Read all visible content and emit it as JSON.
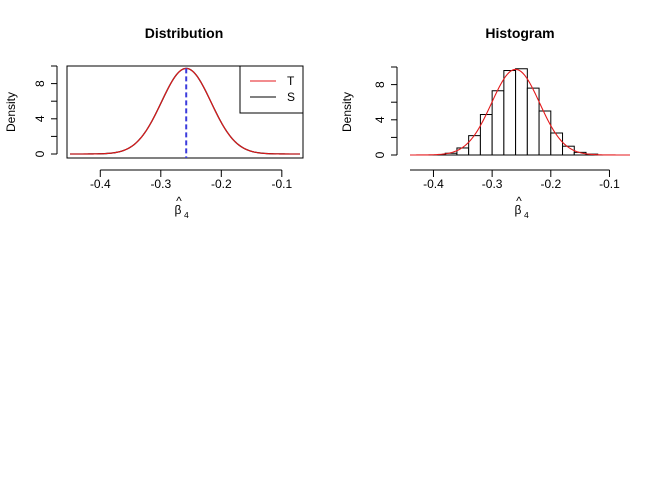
{
  "chart_data": [
    {
      "type": "line",
      "title": "Distribution",
      "xlabel_symbol": "β",
      "xlabel_hat": "^",
      "xlabel_subscript": "4",
      "ylabel": "Density",
      "xlim": [
        -0.455,
        -0.065
      ],
      "ylim": [
        0,
        10
      ],
      "xticks": [
        "-0.4",
        "-0.3",
        "-0.2",
        "-0.1"
      ],
      "xtick_values": [
        -0.4,
        -0.3,
        -0.2,
        -0.1
      ],
      "yticks": [
        "0",
        "4",
        "8"
      ],
      "ytick_values": [
        0,
        4,
        8
      ],
      "y_minor_ticks": [
        2,
        6,
        10
      ],
      "mean": -0.258,
      "sd": 0.041,
      "curve_xrange": [
        -0.45,
        -0.07
      ],
      "vline_x": -0.258,
      "legend": {
        "position": "top-right",
        "entries": [
          "T",
          "S"
        ]
      },
      "series": [
        {
          "name": "T",
          "color": "#e41a1c"
        },
        {
          "name": "S",
          "color": "#000000"
        }
      ],
      "vline_color": "#3b3bdc"
    },
    {
      "type": "bar",
      "title": "Histogram",
      "xlabel_symbol": "β",
      "xlabel_hat": "^",
      "xlabel_subscript": "4",
      "ylabel": "Density",
      "xlim": [
        -0.44,
        -0.065
      ],
      "ylim": [
        0,
        10
      ],
      "xticks": [
        "-0.4",
        "-0.3",
        "-0.2",
        "-0.1"
      ],
      "xtick_values": [
        -0.4,
        -0.3,
        -0.2,
        -0.1
      ],
      "yticks": [
        "0",
        "4",
        "8"
      ],
      "ytick_values": [
        0,
        4,
        8
      ],
      "y_minor_ticks": [
        2,
        6,
        10
      ],
      "bin_edges": [
        -0.38,
        -0.36,
        -0.34,
        -0.32,
        -0.3,
        -0.28,
        -0.26,
        -0.24,
        -0.22,
        -0.2,
        -0.18,
        -0.16,
        -0.14,
        -0.12
      ],
      "bar_heights": [
        0.2,
        0.8,
        2.2,
        4.6,
        7.3,
        9.6,
        9.8,
        7.6,
        5.0,
        2.5,
        1.0,
        0.3,
        0.1
      ],
      "density_curve": {
        "color": "#e41a1c",
        "mean": -0.26,
        "sd": 0.041,
        "xrange": [
          -0.44,
          -0.065
        ]
      }
    }
  ]
}
